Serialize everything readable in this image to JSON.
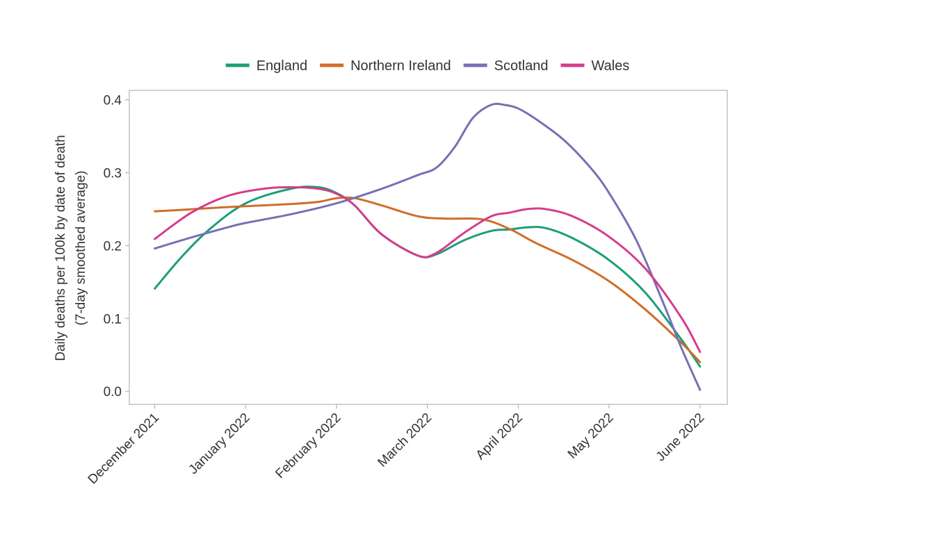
{
  "chart_data": {
    "type": "line",
    "title": "",
    "xlabel": "",
    "ylabel_lines": [
      "Daily deaths per 100k by date of death",
      "(7-day smoothed average)"
    ],
    "ylim": [
      -0.018,
      0.413
    ],
    "yticks": [
      0.0,
      0.1,
      0.2,
      0.3,
      0.4
    ],
    "ytick_labels": [
      "0.0",
      "0.1",
      "0.2",
      "0.3",
      "0.4"
    ],
    "xlim": [
      -0.28,
      6.3
    ],
    "xticks": [
      0,
      1,
      2,
      3,
      4,
      5,
      6
    ],
    "xtick_labels": [
      "December 2021",
      "January 2022",
      "February 2022",
      "March 2022",
      "April 2022",
      "May 2022",
      "June 2022"
    ],
    "legend_position": "top-center",
    "grid": false,
    "series": [
      {
        "name": "England",
        "color": "#1b9e77",
        "x": [
          0,
          0.3,
          0.6,
          1.0,
          1.5,
          1.8,
          2.0,
          2.2,
          2.5,
          2.9,
          3.1,
          3.4,
          3.7,
          3.9,
          4.1,
          4.3,
          4.6,
          5.0,
          5.4,
          5.8,
          6.0
        ],
        "y": [
          0.141,
          0.185,
          0.222,
          0.258,
          0.278,
          0.28,
          0.272,
          0.255,
          0.215,
          0.186,
          0.188,
          0.207,
          0.22,
          0.222,
          0.225,
          0.224,
          0.21,
          0.18,
          0.135,
          0.07,
          0.034
        ]
      },
      {
        "name": "Northern Ireland",
        "color": "#d06d28",
        "x": [
          0,
          0.3,
          0.7,
          1.0,
          1.5,
          1.8,
          2.0,
          2.2,
          2.5,
          2.9,
          3.2,
          3.6,
          3.9,
          4.2,
          4.6,
          5.0,
          5.4,
          5.8,
          6.0
        ],
        "y": [
          0.247,
          0.249,
          0.252,
          0.254,
          0.257,
          0.26,
          0.265,
          0.265,
          0.255,
          0.24,
          0.237,
          0.236,
          0.223,
          0.203,
          0.18,
          0.151,
          0.112,
          0.066,
          0.04
        ]
      },
      {
        "name": "Scotland",
        "color": "#7570b3",
        "x": [
          0,
          0.4,
          0.8,
          1.0,
          1.5,
          2.0,
          2.5,
          2.9,
          3.1,
          3.3,
          3.5,
          3.7,
          3.85,
          4.0,
          4.2,
          4.5,
          4.8,
          5.0,
          5.3,
          5.6,
          5.8,
          6.0
        ],
        "y": [
          0.196,
          0.211,
          0.225,
          0.231,
          0.243,
          0.258,
          0.278,
          0.297,
          0.307,
          0.335,
          0.375,
          0.393,
          0.393,
          0.388,
          0.373,
          0.345,
          0.306,
          0.272,
          0.207,
          0.12,
          0.058,
          0.002
        ]
      },
      {
        "name": "Wales",
        "color": "#d63c8c",
        "x": [
          0,
          0.4,
          0.8,
          1.2,
          1.5,
          1.8,
          2.0,
          2.2,
          2.5,
          2.9,
          3.1,
          3.4,
          3.7,
          3.9,
          4.1,
          4.3,
          4.6,
          5.0,
          5.4,
          5.8,
          6.0
        ],
        "y": [
          0.209,
          0.245,
          0.268,
          0.278,
          0.28,
          0.278,
          0.271,
          0.255,
          0.215,
          0.186,
          0.19,
          0.217,
          0.24,
          0.245,
          0.25,
          0.25,
          0.24,
          0.212,
          0.168,
          0.1,
          0.054
        ]
      }
    ]
  }
}
